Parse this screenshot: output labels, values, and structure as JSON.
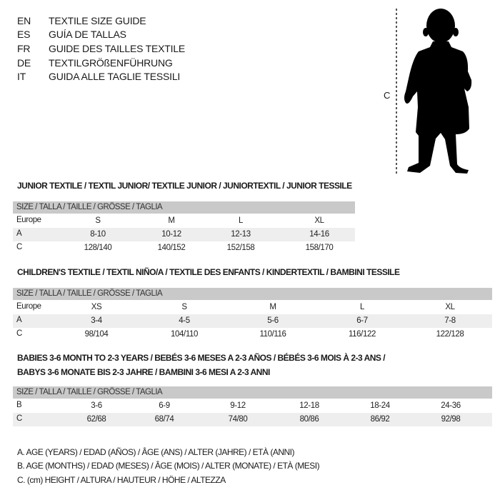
{
  "languages": [
    {
      "code": "EN",
      "text": "TEXTILE SIZE GUIDE"
    },
    {
      "code": "ES",
      "text": "GUÍA DE TALLAS"
    },
    {
      "code": "FR",
      "text": "GUIDE DES TAILLES TEXTILE"
    },
    {
      "code": "DE",
      "text": "TEXTILGRÖßENFÜHRUNG"
    },
    {
      "code": "IT",
      "text": "GUIDA ALLE TAGLIE TESSILI"
    }
  ],
  "figure": {
    "measure_label": "C",
    "icon": "child-silhouette-icon"
  },
  "colors": {
    "header_bg": "#c9c9c9",
    "shaded_row": "#eeeeee",
    "text": "#1a1a1a"
  },
  "tables": [
    {
      "title": [
        "JUNIOR TEXTILE / TEXTIL JUNIOR/ TEXTILE JUNIOR / JUNIORTEXTIL / JUNIOR TESSILE"
      ],
      "header": "SIZE / TALLA / TAILLE / GRÖSSE / TAGLIA",
      "rows": [
        {
          "label": "Europe",
          "values": [
            "S",
            "M",
            "L",
            "XL"
          ]
        },
        {
          "label": "A",
          "values": [
            "8-10",
            "10-12",
            "12-13",
            "14-16"
          ]
        },
        {
          "label": "C",
          "values": [
            "128/140",
            "140/152",
            "152/158",
            "158/170"
          ]
        }
      ]
    },
    {
      "title": [
        "CHILDREN'S TEXTILE / TEXTIL NIÑO/A / TEXTILE DES ENFANTS / KINDERTEXTIL / BAMBINI TESSILE"
      ],
      "header": "SIZE / TALLA / TAILLE / GRÖSSE / TAGLIA",
      "rows": [
        {
          "label": "Europe",
          "values": [
            "XS",
            "S",
            "M",
            "L",
            "XL"
          ]
        },
        {
          "label": "A",
          "values": [
            "3-4",
            "4-5",
            "5-6",
            "6-7",
            "7-8"
          ]
        },
        {
          "label": "C",
          "values": [
            "98/104",
            "104/110",
            "110/116",
            "116/122",
            "122/128"
          ]
        }
      ]
    },
    {
      "title": [
        "BABIES 3-6 MONTH TO 2-3 YEARS / BEBÉS 3-6 MESES A 2-3 AÑOS / BÉBÉS 3-6 MOIS À 2-3 ANS /",
        "BABYS 3-6 MONATE BIS 2-3 JAHRE / BAMBINI 3-6 MESI A 2-3 ANNI"
      ],
      "header": "SIZE / TALLA / TAILLE / GRÖSSE / TAGLIA",
      "rows": [
        {
          "label": "B",
          "values": [
            "3-6",
            "6-9",
            "9-12",
            "12-18",
            "18-24",
            "24-36"
          ]
        },
        {
          "label": "C",
          "values": [
            "62/68",
            "68/74",
            "74/80",
            "80/86",
            "86/92",
            "92/98"
          ]
        }
      ]
    }
  ],
  "legend": [
    "A. AGE (YEARS) / EDAD (AÑOS) / ÂGE (ANS) / ALTER (JAHRE) / ETÀ (ANNI)",
    "B. AGE (MONTHS) / EDAD (MESES) / ÂGE (MOIS) / ALTER (MONATE) / ETÀ (MESI)",
    "C. (cm) HEIGHT / ALTURA / HAUTEUR / HÖHE / ALTEZZA"
  ]
}
